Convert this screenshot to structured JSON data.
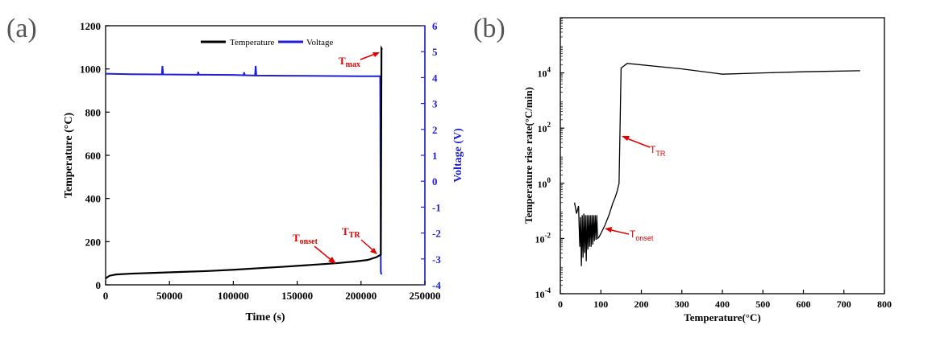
{
  "chart_data": [
    {
      "panel_label": "(a)",
      "type": "line",
      "title": "",
      "xlabel": "Time (s)",
      "ylabel": "Temperature (°C)",
      "y2label": "Voltage (V)",
      "xlim": [
        0,
        250000
      ],
      "ylim": [
        0,
        1200
      ],
      "y2lim": [
        -4,
        6
      ],
      "x_ticks": [
        "0",
        "50000",
        "100000",
        "150000",
        "200000",
        "250000"
      ],
      "y_ticks": [
        "0",
        "200",
        "400",
        "600",
        "800",
        "1000",
        "1200"
      ],
      "y2_ticks": [
        "-4",
        "-3",
        "-2",
        "-1",
        "0",
        "1",
        "2",
        "3",
        "4",
        "5",
        "6"
      ],
      "legend": {
        "position": "top",
        "entries": [
          "Temperature",
          "Voltage"
        ]
      },
      "colors": {
        "temperature": "#000000",
        "voltage": "#1f1fd6",
        "annotation": "#e00000"
      },
      "series": [
        {
          "name": "Temperature",
          "axis": "left",
          "x": [
            0,
            3000,
            8000,
            20000,
            40000,
            60000,
            80000,
            100000,
            120000,
            140000,
            160000,
            180000,
            195000,
            205000,
            212000,
            215500,
            216000,
            216500
          ],
          "y": [
            30,
            42,
            48,
            52,
            56,
            60,
            64,
            70,
            77,
            84,
            92,
            100,
            108,
            115,
            128,
            140,
            1095,
            1090
          ]
        },
        {
          "name": "Voltage",
          "axis": "right",
          "x": [
            0,
            20000,
            44000,
            44500,
            45000,
            72000,
            72500,
            73000,
            100000,
            108000,
            108500,
            109000,
            117000,
            117500,
            118000,
            140000,
            180000,
            200000,
            215000,
            215500,
            216000
          ],
          "y": [
            4.15,
            4.13,
            4.12,
            4.45,
            4.12,
            4.11,
            4.22,
            4.11,
            4.1,
            4.09,
            4.2,
            4.09,
            4.08,
            4.45,
            4.08,
            4.07,
            4.06,
            4.05,
            4.05,
            -3.5,
            -3.6
          ]
        }
      ],
      "annotations": [
        {
          "text": "T",
          "sub": "max",
          "x": 216000,
          "y": 1095
        },
        {
          "text": "T",
          "sub": "TR",
          "x": 215500,
          "y": 140
        },
        {
          "text": "T",
          "sub": "onset",
          "x": 180000,
          "y": 100
        }
      ]
    },
    {
      "panel_label": "(b)",
      "type": "line",
      "title": "",
      "xlabel": "Temperature(°C)",
      "ylabel": "Temperature rise rate(°C/min)",
      "xlim": [
        0,
        800
      ],
      "ylim": [
        0.0001,
        1000000
      ],
      "yscale": "log",
      "x_ticks": [
        "0",
        "100",
        "200",
        "300",
        "400",
        "500",
        "600",
        "700",
        "800"
      ],
      "y_ticks": [
        {
          "base": "10",
          "exp": "-4",
          "value": 0.0001
        },
        {
          "base": "10",
          "exp": "-2",
          "value": 0.01
        },
        {
          "base": "10",
          "exp": "0",
          "value": 1
        },
        {
          "base": "10",
          "exp": "2",
          "value": 100
        },
        {
          "base": "10",
          "exp": "4",
          "value": 10000
        }
      ],
      "colors": {
        "line": "#000000",
        "annotation": "#e00000"
      },
      "series": [
        {
          "name": "Rise rate",
          "x": [
            35,
            40,
            45,
            48,
            50,
            52,
            54,
            56,
            58,
            60,
            62,
            64,
            66,
            68,
            70,
            72,
            74,
            76,
            78,
            80,
            82,
            84,
            86,
            88,
            90,
            92,
            95,
            100,
            110,
            120,
            130,
            135,
            140,
            145,
            150,
            165,
            300,
            400,
            500,
            600,
            740
          ],
          "y": [
            0.2,
            0.08,
            0.15,
            0.005,
            0.06,
            0.001,
            0.07,
            0.002,
            0.08,
            0.003,
            0.07,
            0.0015,
            0.07,
            0.004,
            0.07,
            0.005,
            0.07,
            0.005,
            0.07,
            0.006,
            0.07,
            0.008,
            0.07,
            0.009,
            0.07,
            0.01,
            0.011,
            0.015,
            0.03,
            0.07,
            0.2,
            0.3,
            0.5,
            1.0,
            15000,
            22000,
            14000,
            9000,
            10000,
            11000,
            12000
          ]
        }
      ],
      "annotations": [
        {
          "text": "T",
          "sub": "TR",
          "x": 145,
          "y": 20
        },
        {
          "text": "T",
          "sub": "onset",
          "x": 95,
          "y": 0.011
        }
      ]
    }
  ]
}
